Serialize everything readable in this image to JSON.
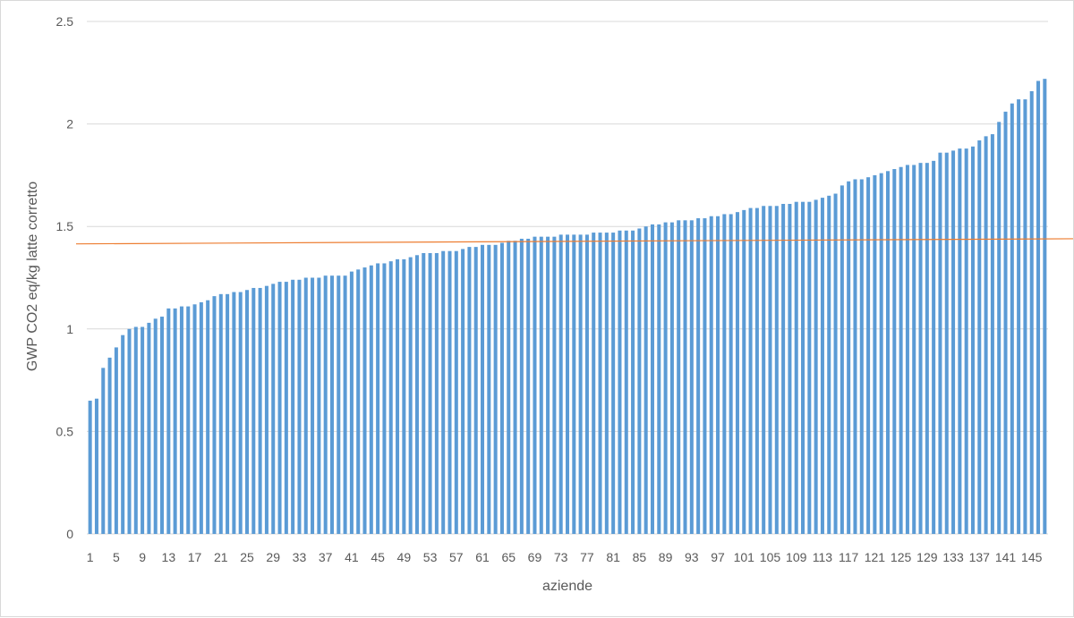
{
  "chart_data": {
    "type": "bar",
    "title": "",
    "xlabel": "aziende",
    "ylabel": "GWP CO2 eq/kg latte corretto",
    "ylim": [
      0,
      2.5
    ],
    "yticks": [
      "0",
      "0.5",
      "1",
      "1.5",
      "2",
      "2.5"
    ],
    "xtick_labels": [
      "1",
      "5",
      "9",
      "13",
      "17",
      "21",
      "25",
      "29",
      "33",
      "37",
      "41",
      "45",
      "49",
      "53",
      "57",
      "61",
      "65",
      "69",
      "73",
      "77",
      "81",
      "85",
      "89",
      "93",
      "97",
      "101",
      "105",
      "109",
      "113",
      "117",
      "121",
      "125",
      "129",
      "133",
      "137",
      "141",
      "145"
    ],
    "x_range": [
      1,
      146
    ],
    "grid": "horizontal",
    "bar_color": "#5b9bd5",
    "reference_line": {
      "color": "#ed7d31",
      "from": 1.415,
      "to": 1.44
    },
    "values": [
      0.65,
      0.66,
      0.81,
      0.86,
      0.91,
      0.97,
      1.0,
      1.01,
      1.01,
      1.03,
      1.05,
      1.06,
      1.1,
      1.1,
      1.11,
      1.11,
      1.12,
      1.13,
      1.14,
      1.16,
      1.17,
      1.17,
      1.18,
      1.18,
      1.19,
      1.2,
      1.2,
      1.21,
      1.22,
      1.23,
      1.23,
      1.24,
      1.24,
      1.25,
      1.25,
      1.25,
      1.26,
      1.26,
      1.26,
      1.26,
      1.28,
      1.29,
      1.3,
      1.31,
      1.32,
      1.32,
      1.33,
      1.34,
      1.34,
      1.35,
      1.36,
      1.37,
      1.37,
      1.37,
      1.38,
      1.38,
      1.38,
      1.39,
      1.4,
      1.4,
      1.41,
      1.41,
      1.41,
      1.42,
      1.43,
      1.43,
      1.44,
      1.44,
      1.45,
      1.45,
      1.45,
      1.45,
      1.46,
      1.46,
      1.46,
      1.46,
      1.46,
      1.47,
      1.47,
      1.47,
      1.47,
      1.48,
      1.48,
      1.48,
      1.49,
      1.5,
      1.51,
      1.51,
      1.52,
      1.52,
      1.53,
      1.53,
      1.53,
      1.54,
      1.54,
      1.55,
      1.55,
      1.56,
      1.56,
      1.57,
      1.58,
      1.59,
      1.59,
      1.6,
      1.6,
      1.6,
      1.61,
      1.61,
      1.62,
      1.62,
      1.62,
      1.63,
      1.64,
      1.65,
      1.66,
      1.7,
      1.72,
      1.73,
      1.73,
      1.74,
      1.75,
      1.76,
      1.77,
      1.78,
      1.79,
      1.8,
      1.8,
      1.81,
      1.81,
      1.82,
      1.86,
      1.86,
      1.87,
      1.88,
      1.88,
      1.89,
      1.92,
      1.94,
      1.95,
      2.01,
      2.06,
      2.1,
      2.12,
      2.12,
      2.16,
      2.21,
      2.22
    ]
  }
}
